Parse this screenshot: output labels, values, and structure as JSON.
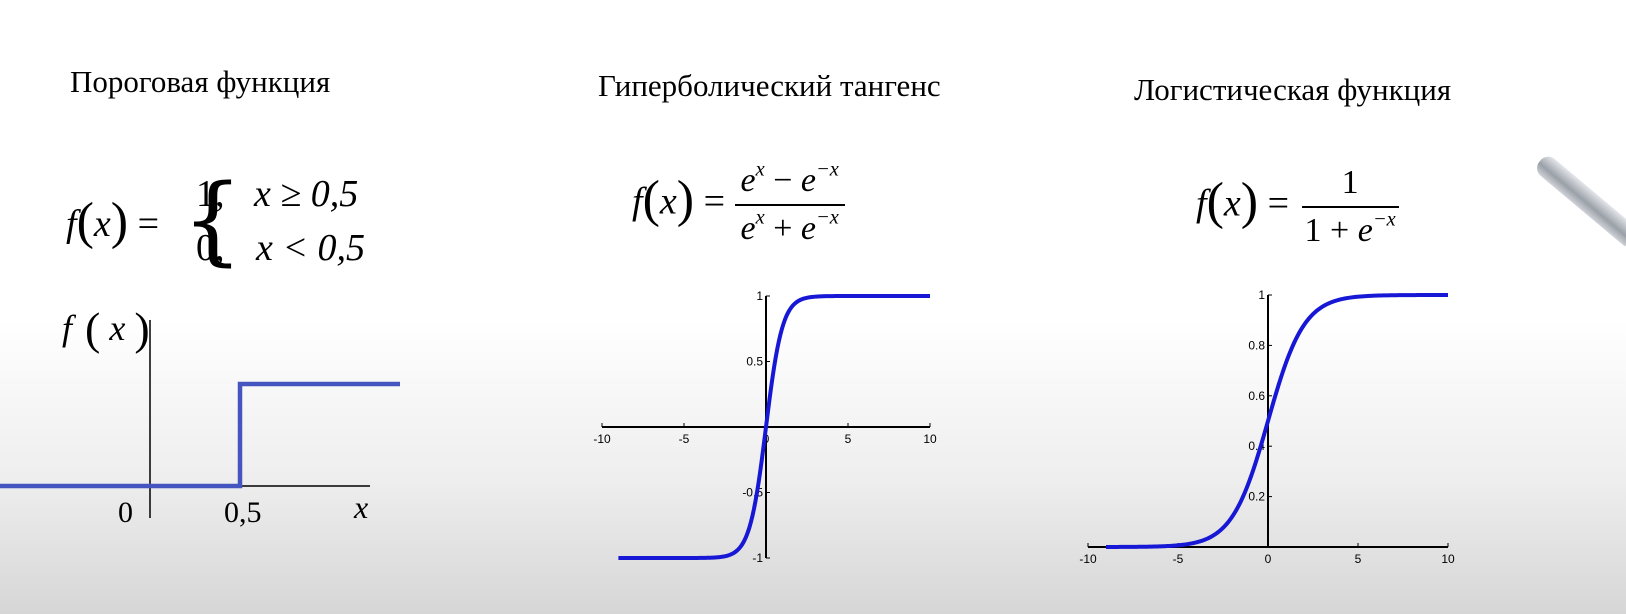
{
  "panels": {
    "threshold": {
      "title": "Пороговая функция",
      "formula": {
        "lhs_f": "f",
        "lhs_x": "x",
        "case1_val": "1,",
        "case1_cond": "x ≥ 0,5",
        "case2_val": "0,",
        "case2_cond": "x < 0,5"
      },
      "axis": {
        "ylabel": "f",
        "ylabel_x": "x",
        "xlabel": "x",
        "tick_zero": "0",
        "tick_threshold": "0,5"
      }
    },
    "tanh": {
      "title": "Гиперболический тангенс",
      "formula": {
        "num_a": "x",
        "num_b": "−x",
        "den_a": "x",
        "den_b": "−x"
      }
    },
    "logistic": {
      "title": "Логистическая функция",
      "formula": {
        "num": "1",
        "den_one": "1",
        "den_exp": "−x"
      }
    }
  },
  "colors": {
    "curve": "#1717d6",
    "step": "#4455c0",
    "axis": "#000000"
  },
  "chart_data": [
    {
      "type": "line",
      "name": "step",
      "threshold": 0.5,
      "x": [
        -1.2,
        0.5,
        0.5,
        1.5
      ],
      "y": [
        0,
        0,
        1,
        1
      ],
      "xticks": [
        "0",
        "0,5"
      ],
      "xlabel": "x",
      "ylabel": "f(x)"
    },
    {
      "type": "line",
      "name": "tanh",
      "function": "tanh",
      "xlim": [
        -10,
        10
      ],
      "ylim": [
        -1,
        1
      ],
      "curve_x": [
        -9,
        10
      ],
      "xticks": [
        -10,
        -5,
        0,
        5,
        10
      ],
      "yticks": [
        -1,
        -0.5,
        0.5,
        1
      ],
      "xtick_labels": [
        "-10",
        "-5",
        "0",
        "5",
        "10"
      ],
      "ytick_labels": [
        "-1",
        "-0.5",
        "0.5",
        "1"
      ]
    },
    {
      "type": "line",
      "name": "logistic",
      "function": "logistic",
      "xlim": [
        -10,
        10
      ],
      "ylim": [
        0,
        1
      ],
      "curve_x": [
        -9,
        10
      ],
      "xticks": [
        -10,
        -5,
        0,
        5,
        10
      ],
      "yticks": [
        0.2,
        0.4,
        0.6,
        0.8,
        1
      ],
      "xtick_labels": [
        "-10",
        "-5",
        "0",
        "5",
        "10"
      ],
      "ytick_labels": [
        "0.2",
        "0.4",
        "0.6",
        "0.8",
        "1"
      ]
    }
  ]
}
